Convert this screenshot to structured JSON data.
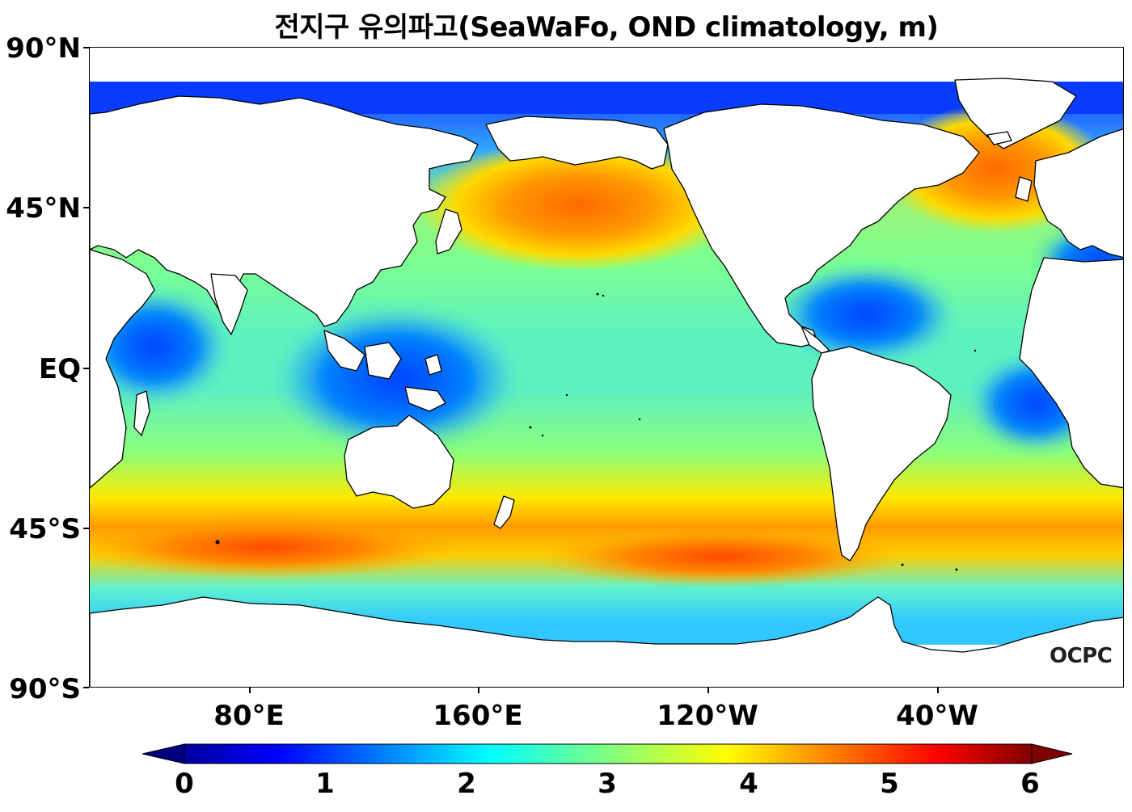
{
  "title": "전지구 유의파고(SeaWaFo, OND climatology, m)",
  "logo": "OCPC",
  "y_ticks": [
    "90°N",
    "45°N",
    "EQ",
    "45°S",
    "90°S"
  ],
  "x_ticks": [
    "80°E",
    "160°E",
    "120°W",
    "40°W"
  ],
  "colorbar": {
    "min": 0,
    "max": 6,
    "labels": [
      "0",
      "1",
      "2",
      "3",
      "4",
      "5",
      "6"
    ],
    "colors": [
      "#00007f",
      "#0000ff",
      "#007fff",
      "#00ffff",
      "#7fff7f",
      "#ffff00",
      "#ff7f00",
      "#ff0000",
      "#7f0000"
    ],
    "extend": "both"
  },
  "map": {
    "projection": "PlateCarree, central longitude 200°E",
    "lon_range": [
      25,
      385
    ],
    "lat_range": [
      -90,
      90
    ],
    "field": "significant wave height (m), October–December climatology",
    "land_color": "#ffffff",
    "coastline_color": "#000000"
  }
}
